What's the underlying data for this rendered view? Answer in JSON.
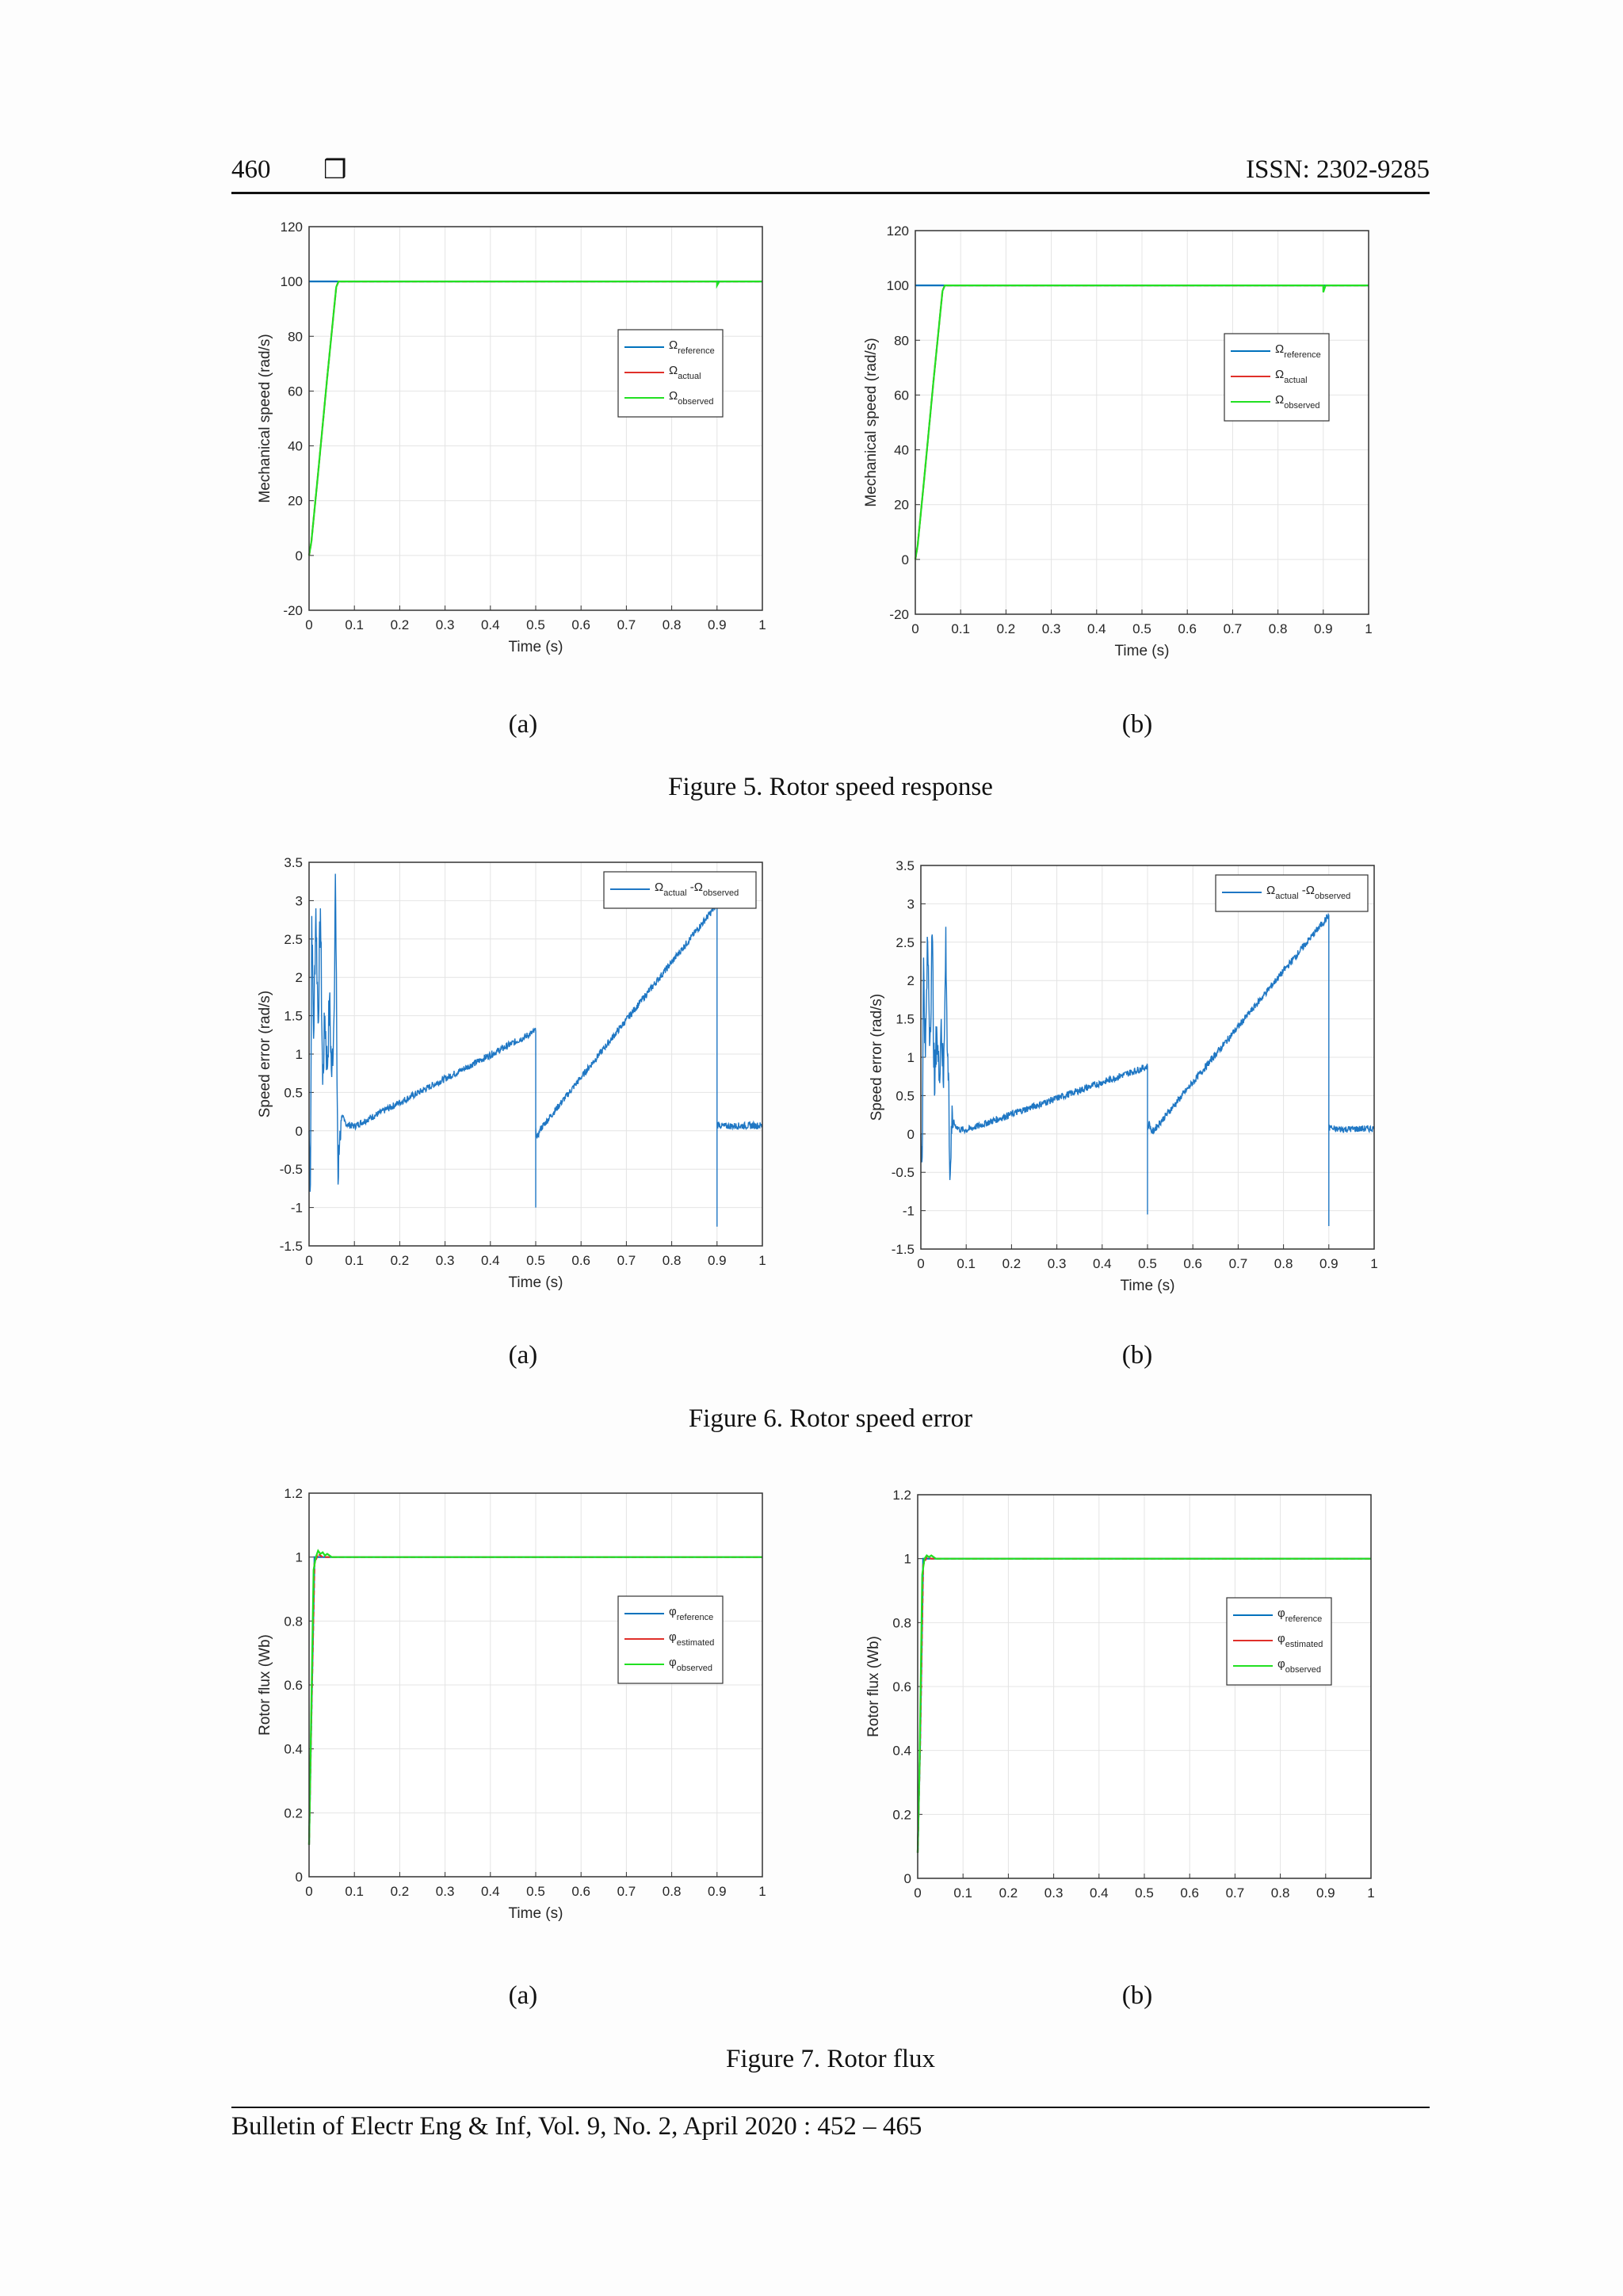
{
  "header": {
    "page_number": "460",
    "issn": "ISSN: 2302-9285"
  },
  "figures": [
    {
      "caption": "Figure 5. Rotor speed response",
      "sub_labels": [
        "(a)",
        "(b)"
      ]
    },
    {
      "caption": "Figure 6. Rotor speed error",
      "sub_labels": [
        "(a)",
        "(b)"
      ]
    },
    {
      "caption": "Figure 7. Rotor flux",
      "sub_labels": [
        "(a)",
        "(b)"
      ]
    }
  ],
  "footer": {
    "text": "Bulletin of Electr Eng & Inf, Vol. 9, No. 2, April 2020 :  452 – 465"
  },
  "colors": {
    "blue": "#0072bd",
    "red": "#e0302a",
    "green": "#22e022",
    "err": "#1f77c4"
  },
  "chart_data": [
    {
      "id": "fig5a",
      "type": "line",
      "xlabel": "Time (s)",
      "ylabel": "Mechanical speed (rad/s)",
      "xlim": [
        0,
        1
      ],
      "ylim": [
        -20,
        120
      ],
      "xticks": [
        "0",
        "0.1",
        "0.2",
        "0.3",
        "0.4",
        "0.5",
        "0.6",
        "0.7",
        "0.8",
        "0.9",
        "1"
      ],
      "yticks": [
        "-20",
        "0",
        "20",
        "40",
        "60",
        "80",
        "100",
        "120"
      ],
      "legend_position": "upper-right",
      "series": [
        {
          "name": "Ω reference",
          "sym": "Ω",
          "sub": "reference",
          "color": "#0072bd",
          "x": [
            0,
            1
          ],
          "y": [
            100,
            100
          ]
        },
        {
          "name": "Ω actual",
          "sym": "Ω",
          "sub": "actual",
          "color": "#e0302a",
          "x": [
            0,
            0.005,
            0.02,
            0.04,
            0.06,
            0.065,
            1
          ],
          "y": [
            0,
            5,
            30,
            65,
            98,
            100,
            100
          ]
        },
        {
          "name": "Ω observed",
          "sym": "Ω",
          "sub": "observed",
          "color": "#22e022",
          "x": [
            0,
            0.005,
            0.02,
            0.04,
            0.06,
            0.065,
            0.9,
            0.9,
            0.905,
            1
          ],
          "y": [
            0,
            5,
            30,
            65,
            98,
            100,
            100,
            98.5,
            100,
            100
          ]
        }
      ]
    },
    {
      "id": "fig5b",
      "type": "line",
      "xlabel": "Time (s)",
      "ylabel": "Mechanical speed (rad/s)",
      "xlim": [
        0,
        1
      ],
      "ylim": [
        -20,
        120
      ],
      "xticks": [
        "0",
        "0.1",
        "0.2",
        "0.3",
        "0.4",
        "0.5",
        "0.6",
        "0.7",
        "0.8",
        "0.9",
        "1"
      ],
      "yticks": [
        "-20",
        "0",
        "20",
        "40",
        "60",
        "80",
        "100",
        "120"
      ],
      "legend_position": "upper-right",
      "series": [
        {
          "name": "Ω reference",
          "sym": "Ω",
          "sub": "reference",
          "color": "#0072bd",
          "x": [
            0,
            1
          ],
          "y": [
            100,
            100
          ]
        },
        {
          "name": "Ω actual",
          "sym": "Ω",
          "sub": "actual",
          "color": "#e0302a",
          "x": [
            0,
            0.005,
            0.02,
            0.04,
            0.06,
            0.065,
            1
          ],
          "y": [
            0,
            5,
            30,
            65,
            98,
            100,
            100
          ]
        },
        {
          "name": "Ω observed",
          "sym": "Ω",
          "sub": "observed",
          "color": "#22e022",
          "x": [
            0,
            0.005,
            0.02,
            0.04,
            0.06,
            0.065,
            0.9,
            0.9,
            0.905,
            1
          ],
          "y": [
            0,
            5,
            30,
            65,
            98,
            100,
            100,
            97.5,
            100,
            100
          ]
        }
      ]
    },
    {
      "id": "fig6a",
      "type": "line",
      "xlabel": "Time (s)",
      "ylabel": "Speed error (rad/s)",
      "xlim": [
        0,
        1
      ],
      "ylim": [
        -1.5,
        3.5
      ],
      "xticks": [
        "0",
        "0.1",
        "0.2",
        "0.3",
        "0.4",
        "0.5",
        "0.6",
        "0.7",
        "0.8",
        "0.9",
        "1"
      ],
      "yticks": [
        "-1.5",
        "-1",
        "-0.5",
        "0",
        "0.5",
        "1",
        "1.5",
        "2",
        "2.5",
        "3",
        "3.5"
      ],
      "legend_position": "upper-right",
      "series": [
        {
          "name": "Ω actual - Ω observed",
          "sym": "Ω",
          "sub": "actual",
          "sym2": "Ω",
          "sub2": "observed",
          "color": "#1f77c4",
          "x": [
            0,
            0.003,
            0.006,
            0.01,
            0.015,
            0.02,
            0.025,
            0.03,
            0.035,
            0.04,
            0.045,
            0.05,
            0.055,
            0.058,
            0.061,
            0.064,
            0.068,
            0.072,
            0.078,
            0.085,
            0.1,
            0.5,
            0.5,
            0.5,
            0.503,
            0.51,
            0.9,
            0.9,
            0.9,
            0.903,
            0.91,
            1
          ],
          "y": [
            0,
            -0.7,
            2.8,
            1.2,
            2.9,
            1.4,
            2.9,
            0.6,
            1.5,
            0.8,
            1.7,
            0.7,
            1.5,
            3.35,
            1.2,
            -0.7,
            0.0,
            0.2,
            0.12,
            0.08,
            0.06,
            1.3,
            -1.0,
            0.05,
            -0.1,
            0.02,
            2.95,
            -1.25,
            0.05,
            0.1,
            0.06,
            0.07
          ]
        }
      ]
    },
    {
      "id": "fig6b",
      "type": "line",
      "xlabel": "Time (s)",
      "ylabel": "Speed error (rad/s)",
      "xlim": [
        0,
        1
      ],
      "ylim": [
        -1.5,
        3.5
      ],
      "xticks": [
        "0",
        "0.1",
        "0.2",
        "0.3",
        "0.4",
        "0.5",
        "0.6",
        "0.7",
        "0.8",
        "0.9",
        "1"
      ],
      "yticks": [
        "-1.5",
        "-1",
        "-0.5",
        "0",
        "0.5",
        "1",
        "1.5",
        "2",
        "2.5",
        "3",
        "3.5"
      ],
      "legend_position": "upper-right",
      "series": [
        {
          "name": "Ω actual - Ω observed",
          "sym": "Ω",
          "sub": "actual",
          "sym2": "Ω",
          "sub2": "observed",
          "color": "#1f77c4",
          "x": [
            0,
            0.003,
            0.006,
            0.01,
            0.015,
            0.02,
            0.025,
            0.03,
            0.035,
            0.04,
            0.045,
            0.05,
            0.055,
            0.058,
            0.061,
            0.064,
            0.068,
            0.072,
            0.078,
            0.085,
            0.1,
            0.5,
            0.5,
            0.5,
            0.503,
            0.51,
            0.9,
            0.9,
            0.9,
            0.903,
            0.91,
            1
          ],
          "y": [
            0,
            -0.3,
            2.3,
            1.0,
            2.5,
            1.2,
            2.6,
            0.5,
            1.4,
            0.7,
            1.5,
            0.6,
            2.7,
            1.1,
            0.8,
            -0.6,
            0.0,
            0.15,
            0.1,
            0.06,
            0.05,
            0.88,
            -1.05,
            0.05,
            0.15,
            0.02,
            2.85,
            -1.2,
            0.05,
            0.1,
            0.06,
            0.07
          ]
        }
      ]
    },
    {
      "id": "fig7a",
      "type": "line",
      "xlabel": "Time (s)",
      "ylabel": "Rotor flux (Wb)",
      "xlim": [
        0,
        1
      ],
      "ylim": [
        0,
        1.2
      ],
      "xticks": [
        "0",
        "0.1",
        "0.2",
        "0.3",
        "0.4",
        "0.5",
        "0.6",
        "0.7",
        "0.8",
        "0.9",
        "1"
      ],
      "yticks": [
        "0",
        "0.2",
        "0.4",
        "0.6",
        "0.8",
        "1",
        "1.2"
      ],
      "legend_position": "upper-right",
      "series": [
        {
          "name": "φ reference",
          "sym": "φ",
          "sub": "reference",
          "color": "#0072bd",
          "x": [
            0,
            0.005,
            0.012,
            1
          ],
          "y": [
            0.1,
            0.5,
            1.0,
            1.0
          ]
        },
        {
          "name": "φ estimated",
          "sym": "φ",
          "sub": "estimated",
          "color": "#e0302a",
          "x": [
            0,
            0.005,
            0.012,
            0.02,
            0.03,
            1
          ],
          "y": [
            0.1,
            0.5,
            0.98,
            1.01,
            1.0,
            1.0
          ]
        },
        {
          "name": "φ observed",
          "sym": "φ",
          "sub": "observed",
          "color": "#22e022",
          "x": [
            0,
            0.004,
            0.01,
            0.015,
            0.02,
            0.025,
            0.03,
            0.035,
            0.04,
            0.05,
            1
          ],
          "y": [
            0.1,
            0.45,
            0.96,
            1.0,
            1.02,
            1.01,
            1.015,
            1.005,
            1.01,
            1.0,
            1.0
          ]
        }
      ]
    },
    {
      "id": "fig7b",
      "type": "line",
      "xlabel": "",
      "ylabel": "Rotor flux (Wb)",
      "xlim": [
        0,
        1
      ],
      "ylim": [
        0,
        1.2
      ],
      "xticks": [
        "0",
        "0.1",
        "0.2",
        "0.3",
        "0.4",
        "0.5",
        "0.6",
        "0.7",
        "0.8",
        "0.9",
        "1"
      ],
      "yticks": [
        "0",
        "0.2",
        "0.4",
        "0.6",
        "0.8",
        "1",
        "1.2"
      ],
      "legend_position": "upper-right",
      "series": [
        {
          "name": "φ reference",
          "sym": "φ",
          "sub": "reference",
          "color": "#0072bd",
          "x": [
            0,
            0.005,
            0.012,
            1
          ],
          "y": [
            0.08,
            0.4,
            1.0,
            1.0
          ]
        },
        {
          "name": "φ estimated",
          "sym": "φ",
          "sub": "estimated",
          "color": "#e0302a",
          "x": [
            0,
            0.005,
            0.012,
            0.02,
            0.03,
            1
          ],
          "y": [
            0.08,
            0.4,
            0.98,
            1.005,
            1.0,
            1.0
          ]
        },
        {
          "name": "φ observed",
          "sym": "φ",
          "sub": "observed",
          "color": "#22e022",
          "x": [
            0,
            0.004,
            0.01,
            0.015,
            0.02,
            0.025,
            0.03,
            0.04,
            1
          ],
          "y": [
            0.08,
            0.35,
            0.95,
            1.0,
            1.01,
            1.005,
            1.01,
            1.0,
            1.0
          ]
        }
      ]
    }
  ]
}
